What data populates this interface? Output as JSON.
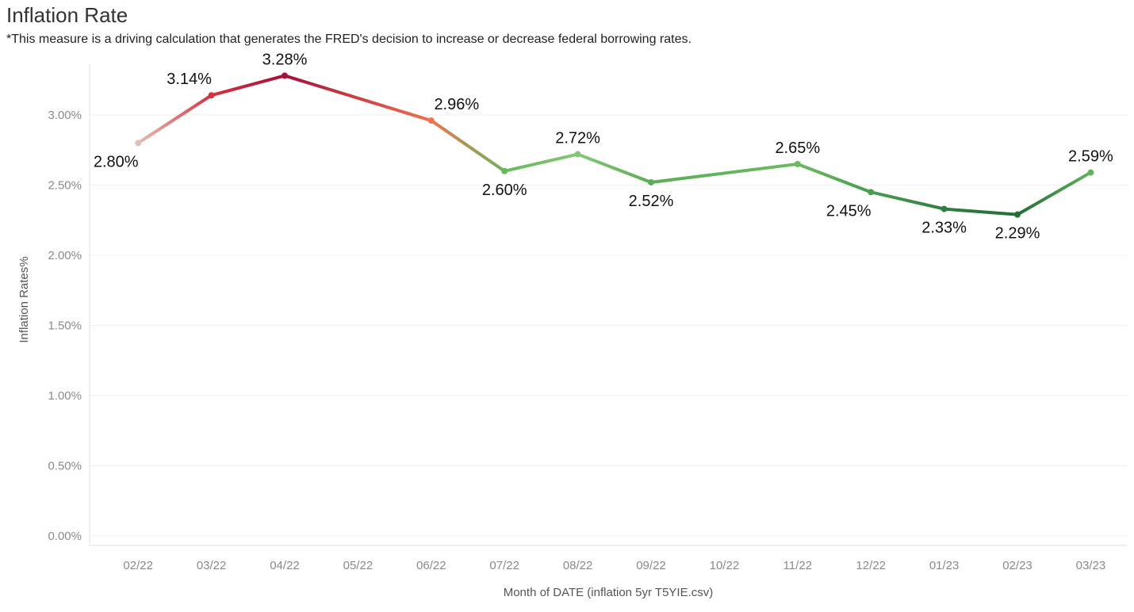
{
  "title": "Inflation Rate",
  "subtitle": "*This measure is a driving calculation that generates the FRED's decision to increase or decrease federal borrowing rates.",
  "chart_data": {
    "type": "line",
    "title": "Inflation Rate",
    "xlabel": "Month of DATE (inflation 5yr T5YIE.csv)",
    "ylabel": "Inflation Rates%",
    "categories": [
      "02/22",
      "03/22",
      "04/22",
      "05/22",
      "06/22",
      "07/22",
      "08/22",
      "09/22",
      "10/22",
      "11/22",
      "12/22",
      "01/23",
      "02/23",
      "03/23"
    ],
    "points": [
      {
        "x": "02/22",
        "y": 2.8,
        "label": "2.80%",
        "color": "#e3c0b2"
      },
      {
        "x": "03/22",
        "y": 3.14,
        "label": "3.14%",
        "color": "#d8323f"
      },
      {
        "x": "04/22",
        "y": 3.28,
        "label": "3.28%",
        "color": "#a5103a"
      },
      {
        "x": "06/22",
        "y": 2.96,
        "label": "2.96%",
        "color": "#f07250"
      },
      {
        "x": "07/22",
        "y": 2.6,
        "label": "2.60%",
        "color": "#6ab85c"
      },
      {
        "x": "08/22",
        "y": 2.72,
        "label": "2.72%",
        "color": "#82c876"
      },
      {
        "x": "09/22",
        "y": 2.52,
        "label": "2.52%",
        "color": "#5aae55"
      },
      {
        "x": "11/22",
        "y": 2.65,
        "label": "2.65%",
        "color": "#6cba60"
      },
      {
        "x": "12/22",
        "y": 2.45,
        "label": "2.45%",
        "color": "#4a9d4e"
      },
      {
        "x": "01/23",
        "y": 2.33,
        "label": "2.33%",
        "color": "#2f7e40"
      },
      {
        "x": "02/23",
        "y": 2.29,
        "label": "2.29%",
        "color": "#226f38"
      },
      {
        "x": "03/23",
        "y": 2.59,
        "label": "2.59%",
        "color": "#62b25a"
      }
    ],
    "y_ticks": [
      {
        "value": 0.0,
        "label": "0.00%"
      },
      {
        "value": 0.5,
        "label": "0.50%"
      },
      {
        "value": 1.0,
        "label": "1.00%"
      },
      {
        "value": 1.5,
        "label": "1.50%"
      },
      {
        "value": 2.0,
        "label": "2.00%"
      },
      {
        "value": 2.5,
        "label": "2.50%"
      },
      {
        "value": 3.0,
        "label": "3.00%"
      }
    ],
    "ylim": [
      0,
      3.5
    ],
    "grid": true,
    "legend": "none"
  }
}
